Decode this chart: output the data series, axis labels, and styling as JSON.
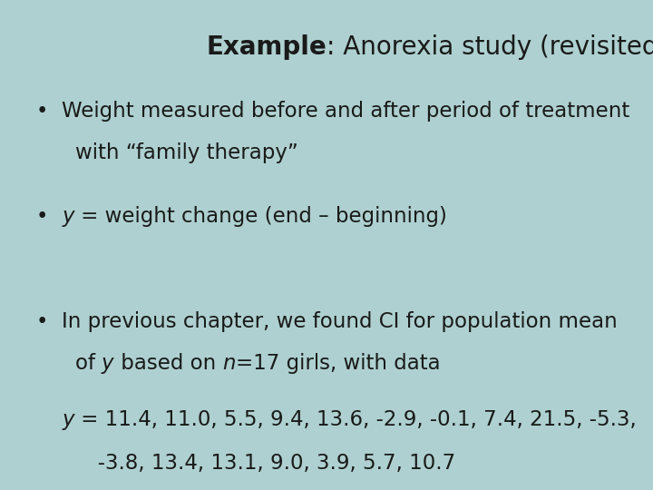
{
  "background_color": "#aed0d0",
  "title_bold": "Example",
  "title_regular": ": Anorexia study (revisited)",
  "title_fontsize": 20,
  "bullet_fontsize": 16.5,
  "data_fontsize": 16.5,
  "text_color": "#1a1a1a",
  "bullet1_line1": "Weight measured before and after period of treatment",
  "bullet1_line2": "with “family therapy”",
  "bullet2_line1_a": "y",
  "bullet2_line1_b": " = weight change (end – beginning)",
  "bullet3_line1": "In previous chapter, we found CI for population mean",
  "bullet3_line2_a": "of ",
  "bullet3_line2_b": "y",
  "bullet3_line2_c": " based on ",
  "bullet3_line2_d": "n",
  "bullet3_line2_e": "=17 girls, with data",
  "data_line1_a": "y",
  "data_line1_b": " = 11.4, 11.0, 5.5, 9.4, 13.6, -2.9, -0.1, 7.4, 21.5, -5.3,",
  "data_line2": "   -3.8, 13.4, 13.1, 9.0, 3.9, 5.7, 10.7"
}
